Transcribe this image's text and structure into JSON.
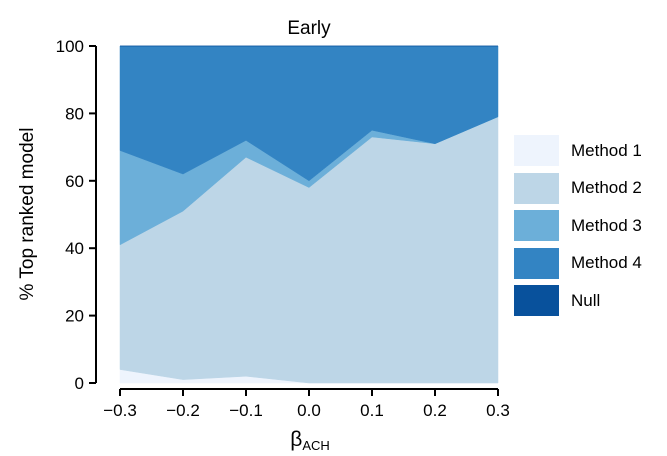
{
  "chart_data": {
    "type": "area",
    "stacked": true,
    "title": "Early",
    "ylabel": "% Top ranked model",
    "xlabel_main": "β",
    "xlabel_sub": "ACH",
    "x": [
      -0.3,
      -0.2,
      -0.1,
      0.0,
      0.1,
      0.2,
      0.3
    ],
    "x_tick_labels": [
      "−0.3",
      "−0.2",
      "−0.1",
      "0.0",
      "0.1",
      "0.2",
      "0.3"
    ],
    "xlim": [
      -0.3,
      0.3
    ],
    "ylim": [
      0,
      100
    ],
    "y_ticks": [
      0,
      20,
      40,
      60,
      80,
      100
    ],
    "y_tick_labels": [
      "0",
      "20",
      "40",
      "60",
      "80",
      "100"
    ],
    "grid": false,
    "legend_position": "right",
    "series": [
      {
        "name": "Method 1",
        "color": "#eef4fd",
        "values": [
          4,
          1,
          2,
          0,
          0,
          0,
          0
        ]
      },
      {
        "name": "Method 2",
        "color": "#bdd6e7",
        "values": [
          37,
          50,
          65,
          58,
          73,
          71,
          79
        ]
      },
      {
        "name": "Method 3",
        "color": "#6cafd9",
        "values": [
          28,
          11,
          5,
          2,
          2,
          0,
          0
        ]
      },
      {
        "name": "Method 4",
        "color": "#3384c3",
        "values": [
          31,
          38,
          28,
          40,
          25,
          29,
          21
        ]
      },
      {
        "name": "Null",
        "color": "#08519c",
        "values": [
          0,
          0,
          0,
          0,
          0,
          0,
          0
        ]
      }
    ]
  }
}
